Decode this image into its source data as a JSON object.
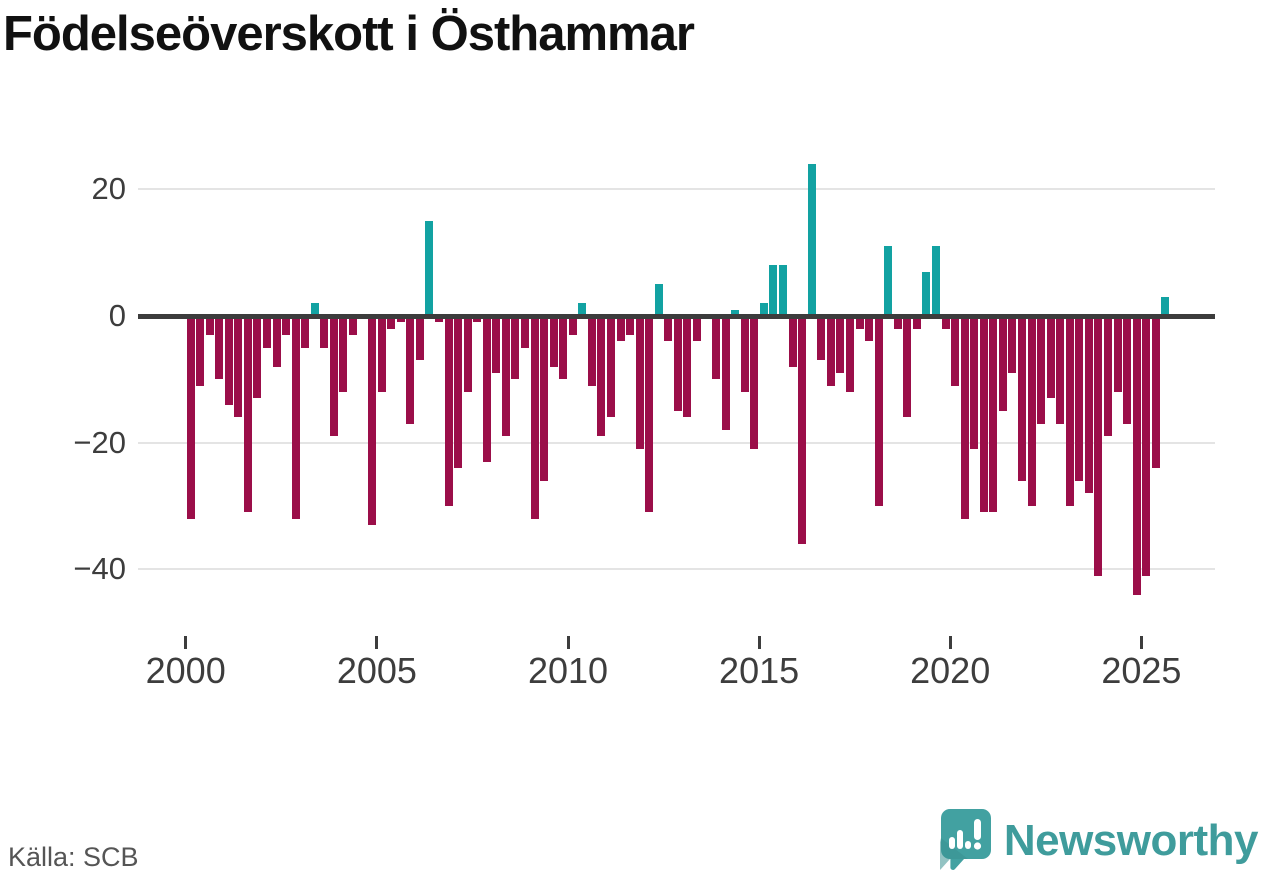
{
  "title": "Födelseöverskott i Östhammar",
  "source": "Källa: SCB",
  "branding": {
    "logo_text": "Newsworthy",
    "logo_icon": "newsworthy-speech-bubble-chart-icon"
  },
  "colors": {
    "positive_bar": "#12a2a2",
    "negative_bar": "#9b0e49",
    "zero_line": "#3c3c3c",
    "gridline": "#e4e4e4",
    "axis_text": "#3d3d3d",
    "title_text": "#111111",
    "source_text": "#555555",
    "logo_teal": "#42a1a1"
  },
  "chart_data": {
    "type": "bar",
    "title": "Födelseöverskott i Östhammar",
    "frequency": "quarterly",
    "x_start": "2000-Q1",
    "x_end": "2025-Q3",
    "values": [
      -32,
      -11,
      -3,
      -10,
      -14,
      -16,
      -31,
      -13,
      -5,
      -8,
      -3,
      -32,
      -5,
      2,
      -5,
      -19,
      -12,
      -3,
      0,
      -33,
      -12,
      -2,
      -1,
      -17,
      -7,
      15,
      -1,
      -30,
      -24,
      -12,
      -1,
      -23,
      -9,
      -19,
      -10,
      -5,
      -32,
      -26,
      -8,
      -10,
      -3,
      2,
      -11,
      -19,
      -16,
      -4,
      -3,
      -21,
      -31,
      5,
      -4,
      -15,
      -16,
      -4,
      0,
      -10,
      -18,
      1,
      -12,
      -21,
      2,
      8,
      8,
      -8,
      -36,
      24,
      -7,
      -11,
      -9,
      -12,
      -2,
      -4,
      -30,
      11,
      -2,
      -16,
      -2,
      7,
      11,
      -2,
      -11,
      -32,
      -21,
      -31,
      -31,
      -15,
      -9,
      -26,
      -30,
      -17,
      -13,
      -17,
      -30,
      -26,
      -28,
      -41,
      -19,
      -12,
      -17,
      -44,
      -41,
      -24,
      3
    ],
    "x_tick_years": [
      2000,
      2005,
      2010,
      2015,
      2020,
      2025
    ],
    "x_tick_labels": [
      "2000",
      "2005",
      "2010",
      "2015",
      "2020",
      "2025"
    ],
    "y_ticks": [
      20,
      0,
      -20,
      -40
    ],
    "y_tick_labels": [
      "20",
      "0",
      "−20",
      "−40"
    ],
    "ylim": [
      -47,
      27
    ],
    "grid": "horizontal",
    "legend": "none"
  }
}
